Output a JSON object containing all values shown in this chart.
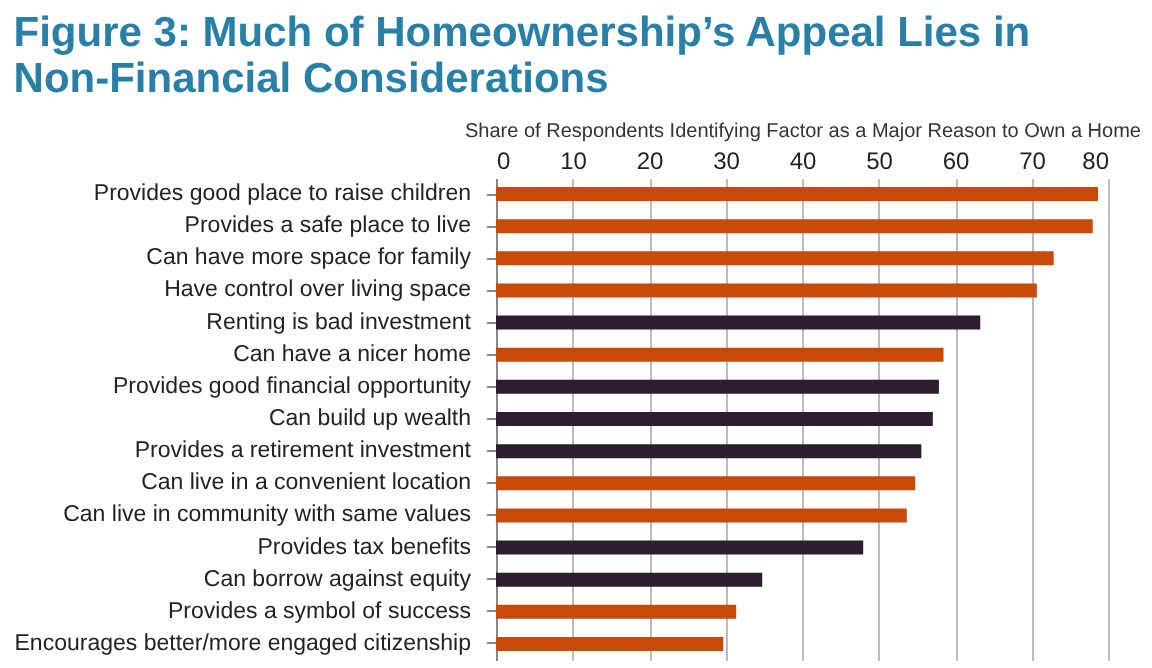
{
  "chart_data": {
    "type": "bar",
    "orientation": "horizontal",
    "title": [
      "Figure 3: Much of Homeownership’s Appeal Lies in",
      "Non-Financial Considerations"
    ],
    "xlabel": "Share of Respondents  Identifying Factor as a Major Reason to Own a Home",
    "categories": [
      "Provides good place to raise children",
      "Provides a safe place to live",
      "Can have more space for family",
      "Have control over living space",
      "Renting is bad investment",
      "Can have a nicer home",
      "Provides good financial opportunity",
      "Can build up wealth",
      "Provides a retirement investment",
      "Can live in a convenient location",
      "Can live in community with same values",
      "Provides tax benefits",
      "Can borrow against equity",
      "Provides a symbol of success",
      "Encourages better/more engaged citizenship"
    ],
    "values": [
      78.7,
      78,
      72.9,
      70.7,
      63.3,
      58.5,
      57.9,
      57.1,
      55.6,
      54.8,
      53.7,
      48,
      34.8,
      31.4,
      29.7
    ],
    "colors": [
      "#c84a0a",
      "#c84a0a",
      "#c84a0a",
      "#c84a0a",
      "#2e1c30",
      "#c84a0a",
      "#2e1c30",
      "#2e1c30",
      "#2e1c30",
      "#c84a0a",
      "#c84a0a",
      "#2e1c30",
      "#2e1c30",
      "#c84a0a",
      "#c84a0a"
    ],
    "xlim": [
      0,
      80
    ],
    "xticks": [
      0,
      10,
      20,
      30,
      40,
      50,
      60,
      70,
      80
    ],
    "grid": "x",
    "legend": false
  }
}
